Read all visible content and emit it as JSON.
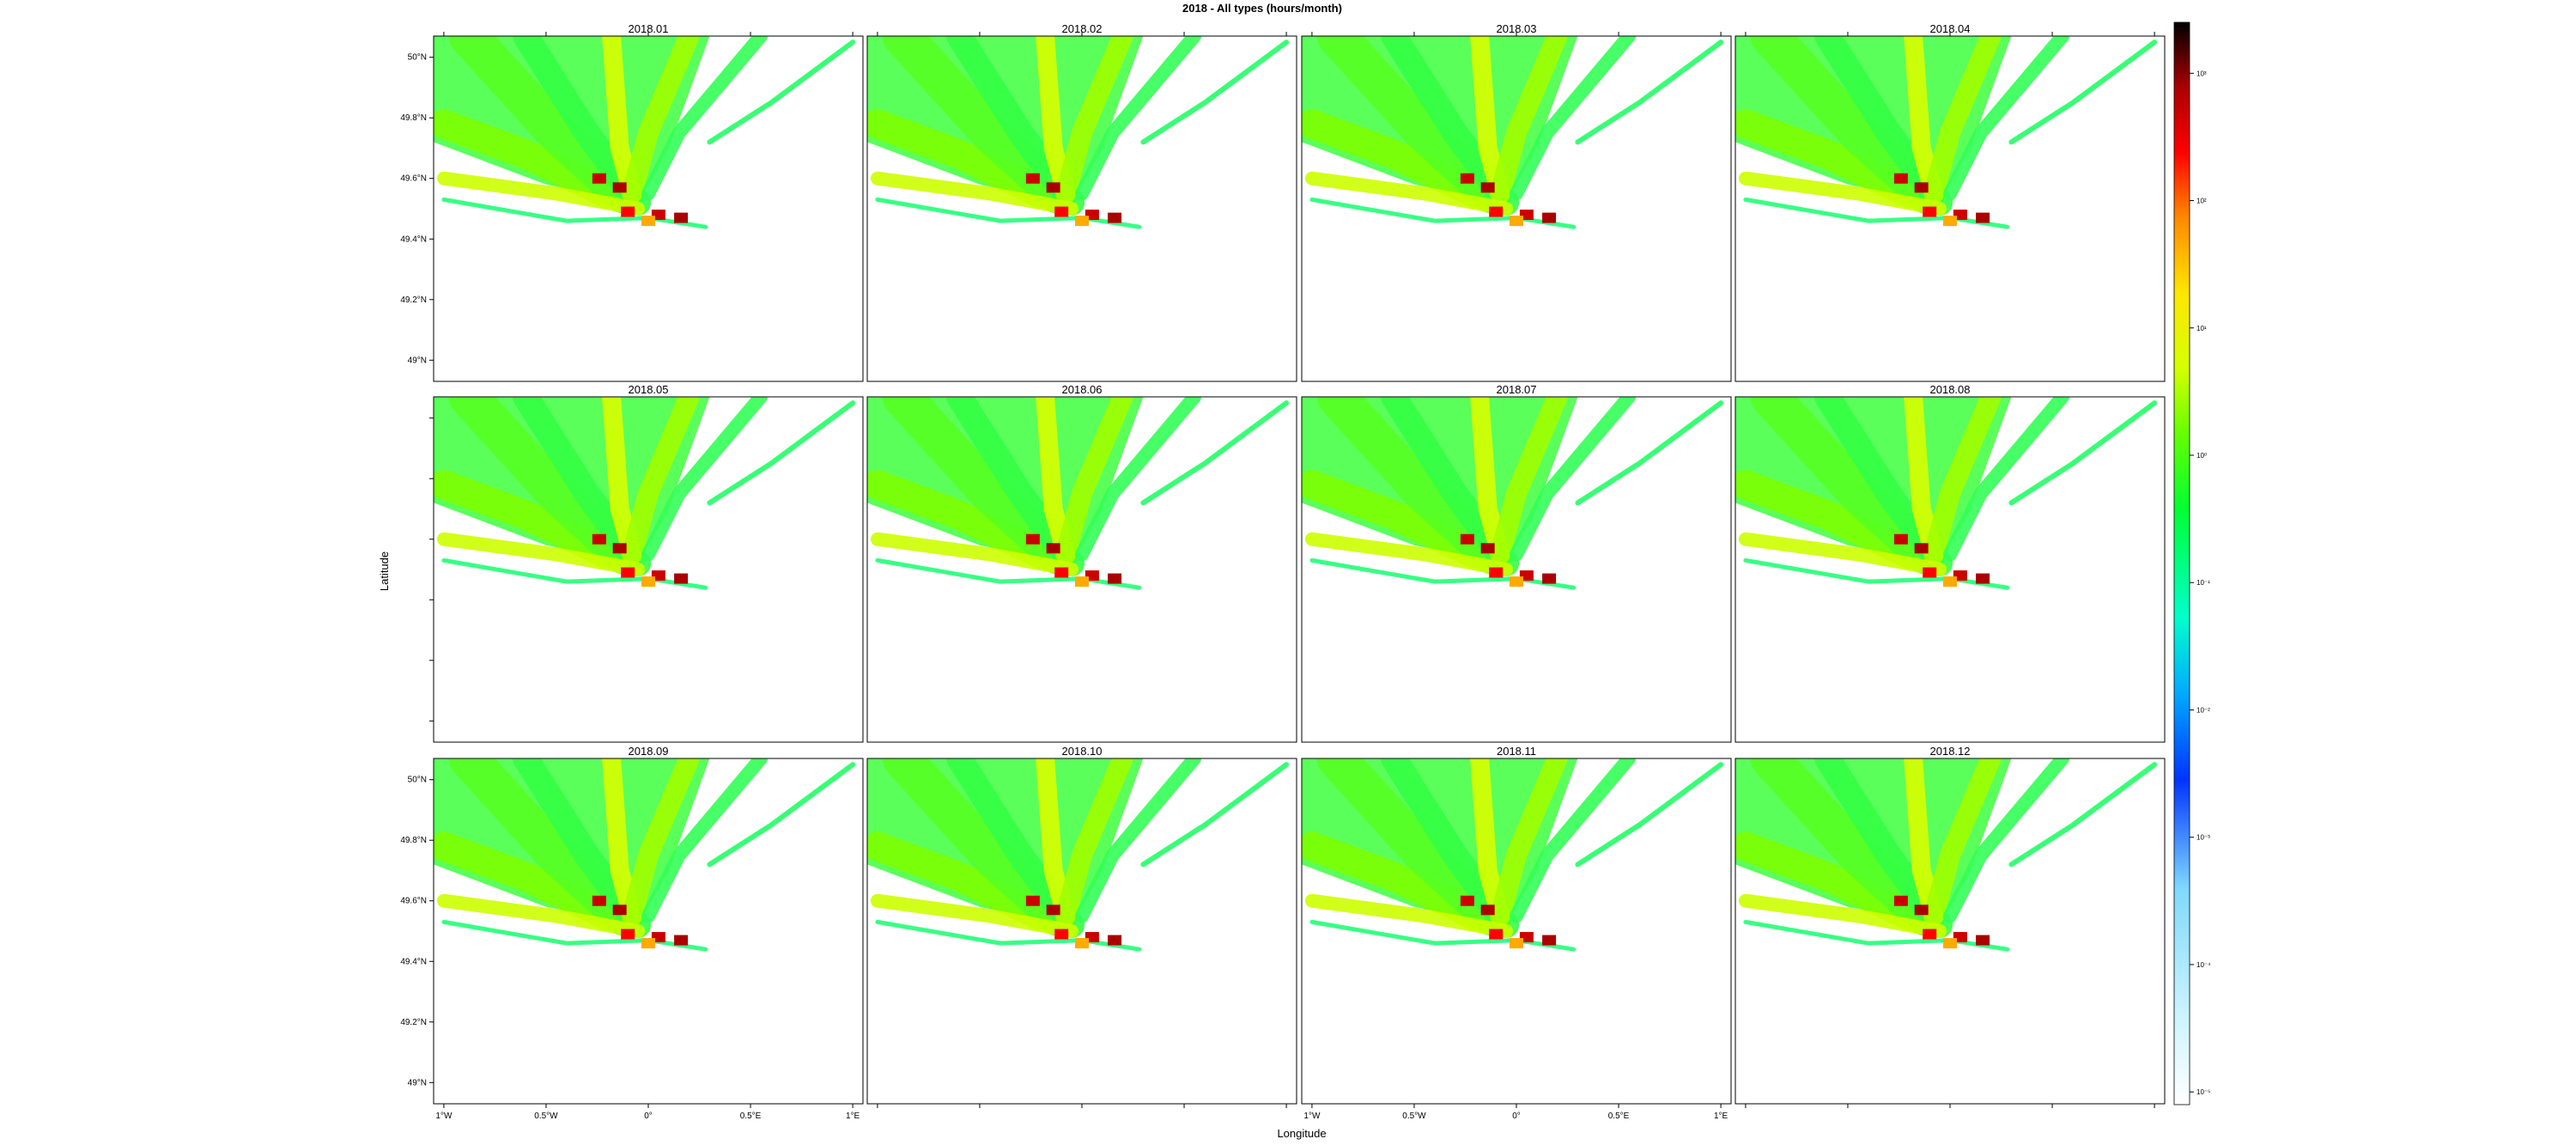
{
  "chart_data": {
    "type": "heatmap",
    "title": "2018 - All types (hours/month)",
    "xlabel": "Longitude",
    "ylabel": "Latitude",
    "xlim": [
      -1.05,
      1.05
    ],
    "ylim": [
      48.93,
      50.07
    ],
    "x_ticks": [
      {
        "value": -1.0,
        "label": "1°W"
      },
      {
        "value": -0.5,
        "label": "0.5°W"
      },
      {
        "value": 0.0,
        "label": "0°"
      },
      {
        "value": 0.5,
        "label": "0.5°E"
      },
      {
        "value": 1.0,
        "label": "1°E"
      }
    ],
    "y_ticks": [
      {
        "value": 50.0,
        "label": "50°N"
      },
      {
        "value": 49.8,
        "label": "49.8°N"
      },
      {
        "value": 49.6,
        "label": "49.6°N"
      },
      {
        "value": 49.4,
        "label": "49.4°N"
      },
      {
        "value": 49.2,
        "label": "49.2°N"
      },
      {
        "value": 49.0,
        "label": "49°N"
      }
    ],
    "panels": [
      "2018.01",
      "2018.02",
      "2018.03",
      "2018.04",
      "2018.05",
      "2018.06",
      "2018.07",
      "2018.08",
      "2018.09",
      "2018.10",
      "2018.11",
      "2018.12"
    ],
    "layout": {
      "rows": 3,
      "cols": 4
    },
    "colorbar": {
      "scale": "log",
      "ticks": [
        {
          "value": 1e-05,
          "label": "10⁻⁵"
        },
        {
          "value": 0.0001,
          "label": "10⁻⁴"
        },
        {
          "value": 0.001,
          "label": "10⁻³"
        },
        {
          "value": 0.01,
          "label": "10⁻²"
        },
        {
          "value": 0.1,
          "label": "10⁻¹"
        },
        {
          "value": 1,
          "label": "10⁰"
        },
        {
          "value": 10,
          "label": "10¹"
        },
        {
          "value": 100,
          "label": "10²"
        },
        {
          "value": 1000,
          "label": "10³"
        }
      ],
      "colors": [
        "#ffffff",
        "#cdf4ff",
        "#7fd8ff",
        "#0033ff",
        "#00aaff",
        "#00ffcc",
        "#00ff33",
        "#66ff00",
        "#d4ff00",
        "#ffe600",
        "#ff8800",
        "#ff0000",
        "#aa0000",
        "#000000"
      ]
    }
  }
}
